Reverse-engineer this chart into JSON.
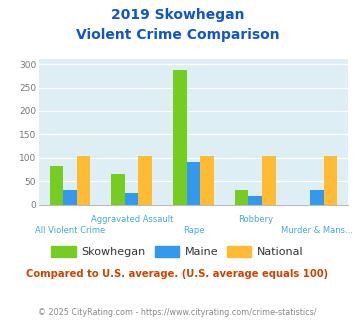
{
  "title_line1": "2019 Skowhegan",
  "title_line2": "Violent Crime Comparison",
  "categories": [
    "All Violent Crime",
    "Aggravated Assault",
    "Rape",
    "Robbery",
    "Murder & Mans..."
  ],
  "cat_row1": [
    "Aggravated Assault",
    "Robbery"
  ],
  "cat_row2": [
    "All Violent Crime",
    "Rape",
    "Murder & Mans..."
  ],
  "skowhegan": [
    83,
    65,
    287,
    31,
    0
  ],
  "maine": [
    31,
    25,
    92,
    18,
    31
  ],
  "national": [
    103,
    103,
    103,
    103,
    103
  ],
  "colors": {
    "skowhegan": "#77cc22",
    "maine": "#3399ee",
    "national": "#ffbb33"
  },
  "ylim": [
    0,
    310
  ],
  "yticks": [
    0,
    50,
    100,
    150,
    200,
    250,
    300
  ],
  "plot_bg": "#ddeef5",
  "title_color": "#1155cc",
  "footer_text": "Compared to U.S. average. (U.S. average equals 100)",
  "credit_text": "© 2025 CityRating.com - https://www.cityrating.com/crime-statistics/",
  "footer_color": "#cc4400",
  "credit_color": "#888888",
  "xlabel_color": "#44aacc",
  "bar_width": 0.22
}
